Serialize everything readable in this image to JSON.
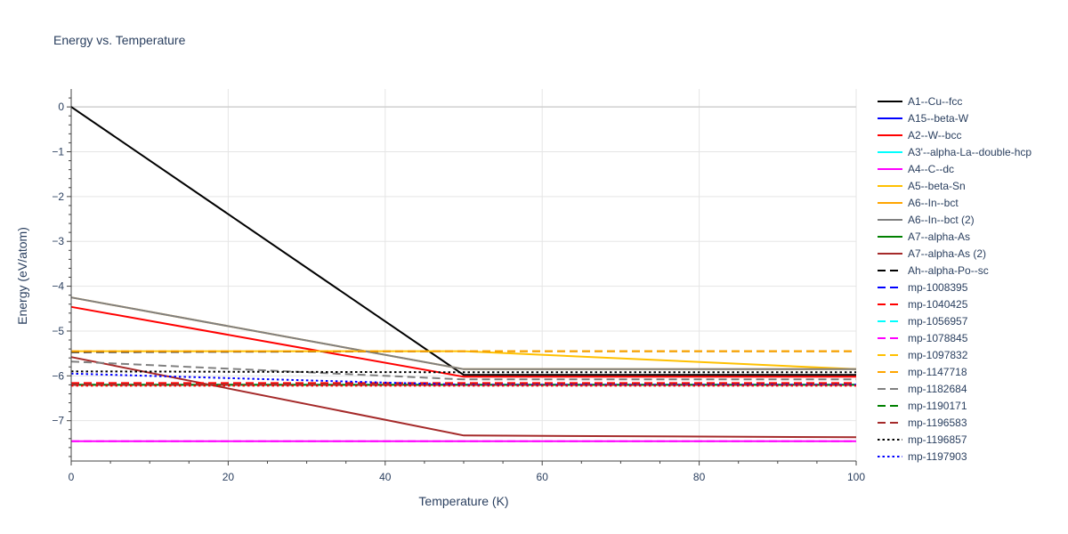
{
  "chart_data": {
    "type": "line",
    "title": "Energy vs. Temperature",
    "xlabel": "Temperature (K)",
    "ylabel": "Energy (eV/atom)",
    "xlim": [
      0,
      100
    ],
    "ylim": [
      -7.9,
      0.4
    ],
    "xticks": [
      0,
      20,
      40,
      60,
      80,
      100
    ],
    "yticks": [
      0,
      -1,
      -2,
      -3,
      -4,
      -5,
      -6,
      -7
    ],
    "xtick_labels": [
      "0",
      "20",
      "40",
      "60",
      "80",
      "100"
    ],
    "ytick_labels": [
      "0",
      "−1",
      "−2",
      "−3",
      "−4",
      "−5",
      "−6",
      "−7"
    ],
    "grid": true,
    "legend_position": "right",
    "series": [
      {
        "name": "A1--Cu--fcc",
        "color": "#000000",
        "dash": "solid",
        "x": [
          0,
          50,
          100
        ],
        "y": [
          0,
          -5.98,
          -5.98
        ]
      },
      {
        "name": "A15--beta-W",
        "color": "#0000ff",
        "dash": "solid",
        "x": [
          0,
          50,
          100
        ],
        "y": [
          -6.2,
          -6.2,
          -6.2
        ]
      },
      {
        "name": "A2--W--bcc",
        "color": "#ff0000",
        "dash": "solid",
        "x": [
          0,
          50,
          100
        ],
        "y": [
          -4.46,
          -6.02,
          -6.02
        ]
      },
      {
        "name": "A3'--alpha-La--double-hcp",
        "color": "#00ffff",
        "dash": "solid",
        "x": [
          0,
          50,
          100
        ],
        "y": [
          -6.2,
          -6.2,
          -6.2
        ]
      },
      {
        "name": "A4--C--dc",
        "color": "#ff00ff",
        "dash": "solid",
        "x": [
          0,
          50,
          100
        ],
        "y": [
          -7.46,
          -7.46,
          -7.46
        ]
      },
      {
        "name": "A5--beta-Sn",
        "color": "#ffc000",
        "dash": "solid",
        "x": [
          0,
          50,
          100
        ],
        "y": [
          -5.45,
          -5.45,
          -5.85
        ]
      },
      {
        "name": "A6--In--bct",
        "color": "#ffa500",
        "dash": "solid",
        "x": [
          0,
          50,
          100
        ],
        "y": [
          -4.25,
          -5.85,
          -5.85
        ]
      },
      {
        "name": "A6--In--bct (2)",
        "color": "#808080",
        "dash": "solid",
        "x": [
          0,
          50,
          100
        ],
        "y": [
          -4.25,
          -5.85,
          -5.85
        ]
      },
      {
        "name": "A7--alpha-As",
        "color": "#008000",
        "dash": "solid",
        "x": [
          0,
          50,
          100
        ],
        "y": [
          -6.2,
          -6.2,
          -6.2
        ]
      },
      {
        "name": "A7--alpha-As (2)",
        "color": "#a52a2a",
        "dash": "solid",
        "x": [
          0,
          50,
          100
        ],
        "y": [
          -5.58,
          -7.33,
          -7.37
        ]
      },
      {
        "name": "Ah--alpha-Po--sc",
        "color": "#000000",
        "dash": "dash",
        "x": [
          0,
          50,
          100
        ],
        "y": [
          -5.47,
          -5.45,
          -5.45
        ]
      },
      {
        "name": "mp-1008395",
        "color": "#0000ff",
        "dash": "dash",
        "x": [
          0,
          50,
          100
        ],
        "y": [
          -6.2,
          -6.2,
          -6.2
        ]
      },
      {
        "name": "mp-1040425",
        "color": "#ff0000",
        "dash": "dash",
        "x": [
          0,
          50,
          100
        ],
        "y": [
          -6.16,
          -6.16,
          -6.16
        ]
      },
      {
        "name": "mp-1056957",
        "color": "#00ffff",
        "dash": "dash",
        "x": [
          0,
          50,
          100
        ],
        "y": [
          -6.2,
          -6.2,
          -6.2
        ]
      },
      {
        "name": "mp-1078845",
        "color": "#ff00ff",
        "dash": "dash",
        "x": [
          0,
          50,
          100
        ],
        "y": [
          -7.46,
          -7.46,
          -7.46
        ]
      },
      {
        "name": "mp-1097832",
        "color": "#ffc000",
        "dash": "dash",
        "x": [
          0,
          50,
          100
        ],
        "y": [
          -5.45,
          -5.45,
          -5.45
        ]
      },
      {
        "name": "mp-1147718",
        "color": "#ffa500",
        "dash": "dash",
        "x": [
          0,
          50,
          100
        ],
        "y": [
          -5.45,
          -5.45,
          -5.45
        ]
      },
      {
        "name": "mp-1182684",
        "color": "#808080",
        "dash": "dash",
        "x": [
          0,
          50,
          100
        ],
        "y": [
          -5.68,
          -6.08,
          -6.08
        ]
      },
      {
        "name": "mp-1190171",
        "color": "#008000",
        "dash": "dash",
        "x": [
          0,
          50,
          100
        ],
        "y": [
          -6.2,
          -6.2,
          -6.2
        ]
      },
      {
        "name": "mp-1196583",
        "color": "#a52a2a",
        "dash": "dash",
        "x": [
          0,
          50,
          100
        ],
        "y": [
          -6.2,
          -6.2,
          -6.2
        ]
      },
      {
        "name": "mp-1196857",
        "color": "#000000",
        "dash": "dot",
        "x": [
          0,
          50,
          100
        ],
        "y": [
          -5.9,
          -5.92,
          -5.92
        ]
      },
      {
        "name": "mp-1197903",
        "color": "#0000ff",
        "dash": "dot",
        "x": [
          0,
          50,
          100
        ],
        "y": [
          -5.95,
          -6.2,
          -6.2
        ]
      },
      {
        "name": "",
        "color": "#ff0000",
        "dash": "dot",
        "x": [
          0,
          50,
          100
        ],
        "y": [
          -6.22,
          -6.22,
          -6.22
        ]
      }
    ]
  }
}
